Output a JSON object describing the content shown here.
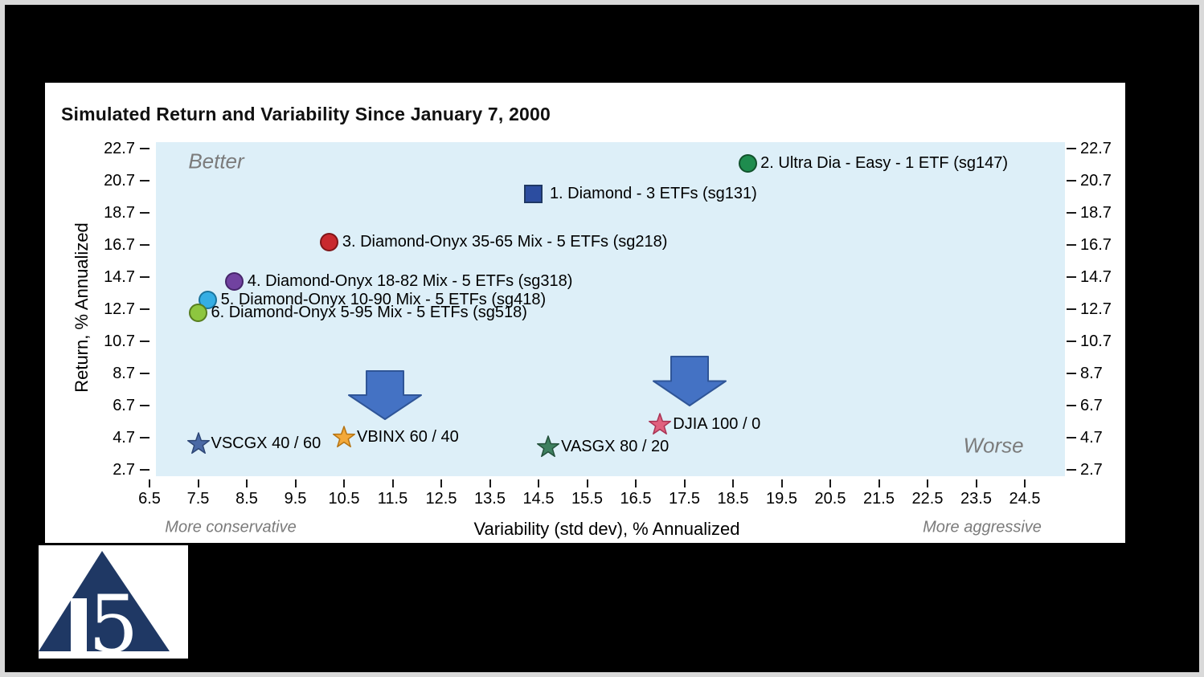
{
  "chart_data": {
    "type": "scatter",
    "title": "Simulated Return and Variability Since January 7, 2000",
    "xlabel": "Variability (std dev), % Annualized",
    "ylabel": "Return, % Annualized",
    "xlim": [
      6.5,
      24.5
    ],
    "ylim": [
      2.7,
      22.7
    ],
    "x_ticks": [
      "6.5",
      "7.5",
      "8.5",
      "9.5",
      "10.5",
      "11.5",
      "12.5",
      "13.5",
      "14.5",
      "15.5",
      "16.5",
      "17.5",
      "18.5",
      "19.5",
      "20.5",
      "21.5",
      "22.5",
      "23.5",
      "24.5"
    ],
    "y_ticks": [
      "2.7",
      "4.7",
      "6.7",
      "8.7",
      "10.7",
      "12.7",
      "14.7",
      "16.7",
      "18.7",
      "20.7",
      "22.7"
    ],
    "plot_bg": "#ddeff8",
    "grid": "off",
    "legend": "labels-beside-points",
    "annotations": {
      "better": "Better",
      "worse": "Worse",
      "more_conservative": "More conservative",
      "more_aggressive": "More aggressive"
    },
    "points": [
      {
        "label": "1. Diamond - 3 ETFs (sg131)",
        "marker": "square",
        "x": 14.4,
        "y": 19.9,
        "fill": "#2c4da0",
        "stroke": "#1f3864"
      },
      {
        "label": "2. Ultra Dia - Easy - 1 ETF (sg147)",
        "marker": "circle",
        "x": 18.8,
        "y": 21.8,
        "fill": "#1e8c4e",
        "stroke": "#11522c"
      },
      {
        "label": "3. Diamond-Onyx 35-65 Mix - 5 ETFs (sg218)",
        "marker": "circle",
        "x": 10.2,
        "y": 16.9,
        "fill": "#c9292e",
        "stroke": "#7f1518"
      },
      {
        "label": "4. Diamond-Onyx 18-82 Mix - 5 ETFs (sg318)",
        "marker": "circle",
        "x": 8.25,
        "y": 14.45,
        "fill": "#7142a0",
        "stroke": "#46256b"
      },
      {
        "label": "5. Diamond-Onyx 10-90 Mix - 5 ETFs (sg418)",
        "marker": "circle",
        "x": 7.7,
        "y": 13.3,
        "fill": "#35aee4",
        "stroke": "#1b749d"
      },
      {
        "label": "6. Diamond-Onyx 5-95 Mix - 5 ETFs (sg518)",
        "marker": "circle",
        "x": 7.5,
        "y": 12.5,
        "fill": "#8dc63f",
        "stroke": "#567d1e"
      },
      {
        "label": "VSCGX 40 / 60",
        "marker": "star",
        "x": 7.5,
        "y": 4.35,
        "fill": "#4a69a5",
        "stroke": "#2d4675"
      },
      {
        "label": "VBINX 60 / 40",
        "marker": "star",
        "x": 10.5,
        "y": 4.75,
        "fill": "#f3a93a",
        "stroke": "#b57414"
      },
      {
        "label": "VASGX 80 / 20",
        "marker": "star",
        "x": 14.7,
        "y": 4.15,
        "fill": "#3e8060",
        "stroke": "#23503a"
      },
      {
        "label": "DJIA 100 / 0",
        "marker": "star",
        "x": 17.0,
        "y": 5.55,
        "fill": "#e0607e",
        "stroke": "#a93354"
      }
    ],
    "arrows": [
      {
        "direction": "down",
        "x": 11.35,
        "y_top": 8.85,
        "y_tip": 5.85,
        "fill": "#4472c4",
        "stroke": "#2f5597"
      },
      {
        "direction": "down",
        "x": 17.6,
        "y_top": 9.75,
        "y_tip": 6.7,
        "fill": "#4472c4",
        "stroke": "#2f5597"
      }
    ]
  },
  "logo": {
    "text": "15",
    "triangle_color": "#1f3864"
  }
}
